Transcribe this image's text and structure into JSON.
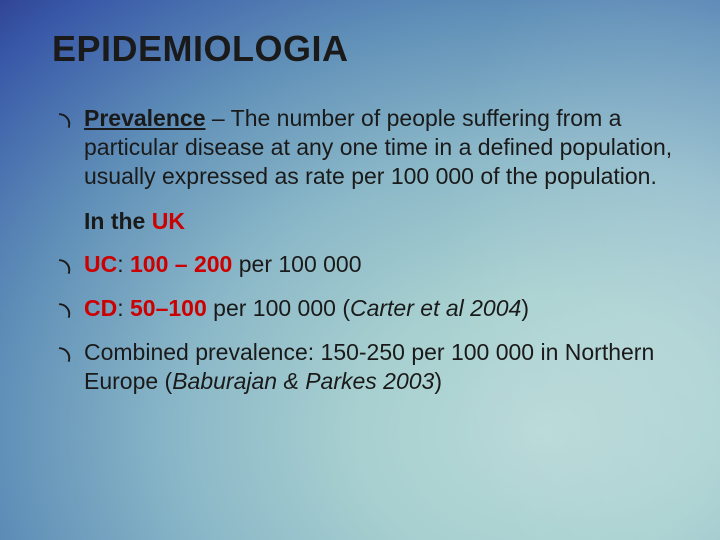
{
  "palette": {
    "title_color": "#1a1a1a",
    "body_color": "#1a1a1a",
    "emphasis_color": "#cc0000",
    "bg_gradient_stops": [
      "#b8d8d8",
      "#a8d0d0",
      "#8bb8c8",
      "#6090b8",
      "#3858a8",
      "#282878"
    ]
  },
  "typography": {
    "title_fontsize": 36,
    "body_fontsize": 23,
    "font_family": "Trebuchet MS"
  },
  "title": "EPIDEMIOLOGIA",
  "prevalence": {
    "term": "Prevalence",
    "definition_rest": " – The number of people suffering from a particular disease at any one time in a defined population, usually expressed as rate per 100 000 of the population."
  },
  "subhead": {
    "prefix": "In the ",
    "region": "UK"
  },
  "uc": {
    "label": "UC",
    "sep": ": ",
    "value": "100 – 200",
    "rest": " per 100 000"
  },
  "cd": {
    "label": "CD",
    "sep": ": ",
    "value": "50–100",
    "rest": " per 100 000 (",
    "citation": "Carter et al 2004",
    "close": ")"
  },
  "combined": {
    "text": "Combined prevalence: 150-250 per 100 000 in Northern Europe (",
    "citation": "Baburajan & Parkes 2003",
    "close": ")"
  }
}
